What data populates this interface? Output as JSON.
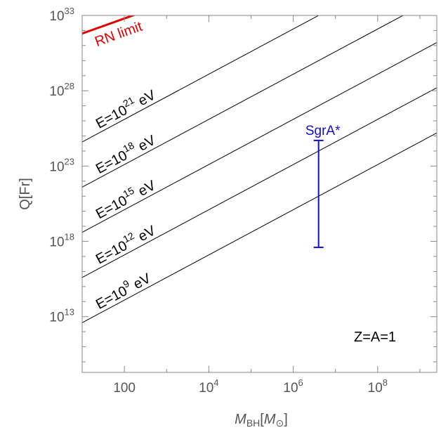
{
  "chart_data": {
    "type": "line",
    "title": "",
    "xlabel": {
      "base": "M",
      "sub": "BH",
      "bracket_open": "[",
      "unit": "M",
      "unit_sub": "⊙",
      "bracket_close": "]"
    },
    "ylabel": "Q[Fr]",
    "x_log10_range": [
      1,
      9.4
    ],
    "y_log10_range": [
      9.3,
      33
    ],
    "x_ticks": [
      {
        "log10": 2,
        "label": "100",
        "base": "",
        "exp": ""
      },
      {
        "log10": 4,
        "label": "",
        "base": "10",
        "exp": "4"
      },
      {
        "log10": 6,
        "label": "",
        "base": "10",
        "exp": "6"
      },
      {
        "log10": 8,
        "label": "",
        "base": "10",
        "exp": "8"
      }
    ],
    "y_ticks": [
      {
        "log10": 13,
        "base": "10",
        "exp": "13"
      },
      {
        "log10": 18,
        "base": "10",
        "exp": "18"
      },
      {
        "log10": 23,
        "base": "10",
        "exp": "23"
      },
      {
        "log10": 28,
        "base": "10",
        "exp": "28"
      },
      {
        "log10": 33,
        "base": "10",
        "exp": "33"
      }
    ],
    "series": [
      {
        "prefix": "E=10",
        "exp": "21",
        "suffix": " eV",
        "log_q_at_x1": 24.6,
        "slope": 1.5,
        "color": "#000000"
      },
      {
        "prefix": "E=10",
        "exp": "18",
        "suffix": " eV",
        "log_q_at_x1": 21.6,
        "slope": 1.5,
        "color": "#000000"
      },
      {
        "prefix": "E=10",
        "exp": "15",
        "suffix": " eV",
        "log_q_at_x1": 18.6,
        "slope": 1.5,
        "color": "#000000"
      },
      {
        "prefix": "E=10",
        "exp": "12",
        "suffix": " eV",
        "log_q_at_x1": 15.6,
        "slope": 1.5,
        "color": "#000000"
      },
      {
        "prefix": "E=10",
        "exp": "9",
        "suffix": " eV",
        "log_q_at_x1": 12.6,
        "slope": 1.5,
        "color": "#000000"
      }
    ],
    "rn_limit": {
      "label": "RN limit",
      "log_q_at_x1": 31.8,
      "slope": 1.0,
      "x_log10_end": 3.0,
      "color": "#e00000"
    },
    "source": {
      "label": "SgrA*",
      "x_log10": 6.6,
      "y_log10_low": 17.6,
      "y_log10_high": 24.7,
      "color": "#1010cc"
    },
    "annotation": "Z=A=1",
    "grid": false
  }
}
